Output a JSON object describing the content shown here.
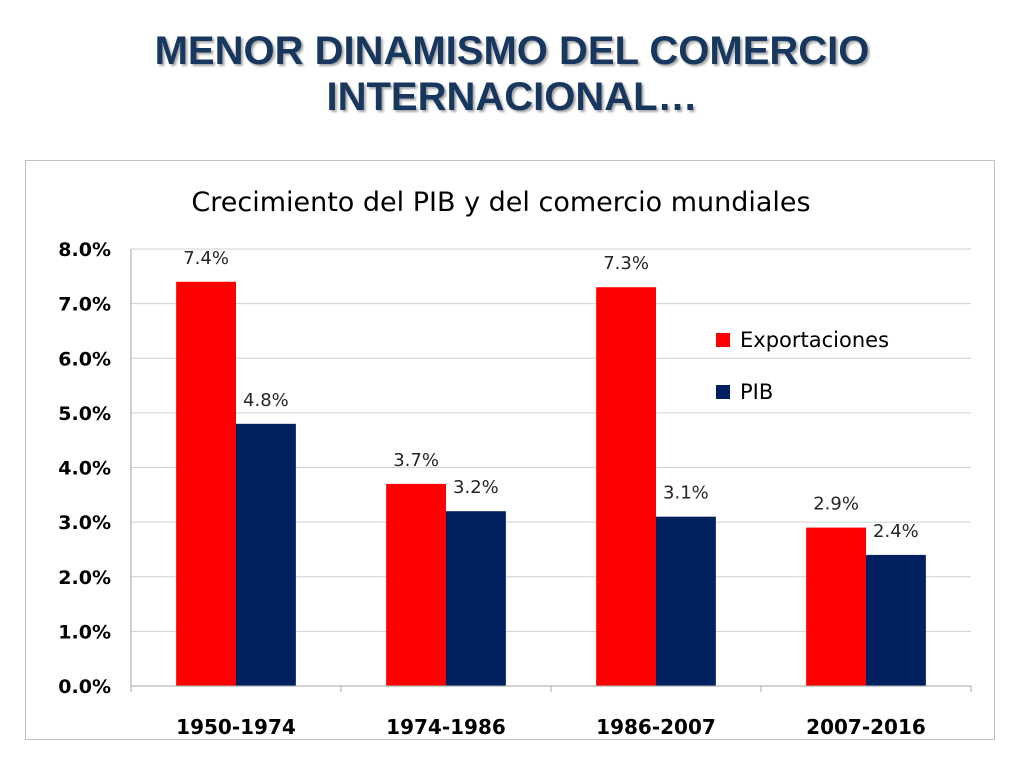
{
  "slide": {
    "title_line1": "MENOR DINAMISMO DEL COMERCIO",
    "title_line2": "INTERNACIONAL…"
  },
  "chart_data": {
    "type": "bar",
    "title": "Crecimiento del PIB y del comercio mundiales",
    "categories": [
      "1950-1974",
      "1974-1986",
      "1986-2007",
      "2007-2016"
    ],
    "series": [
      {
        "name": "Exportaciones",
        "color": "#ff0000",
        "values": [
          7.4,
          3.7,
          7.3,
          2.9
        ],
        "labels": [
          "7.4%",
          "3.7%",
          "7.3%",
          "2.9%"
        ]
      },
      {
        "name": "PIB",
        "color": "#002060",
        "values": [
          4.8,
          3.2,
          3.1,
          2.4
        ],
        "labels": [
          "4.8%",
          "3.2%",
          "3.1%",
          "2.4%"
        ]
      }
    ],
    "ylim": [
      0,
      8
    ],
    "yticks": [
      "0.0%",
      "1.0%",
      "2.0%",
      "3.0%",
      "4.0%",
      "5.0%",
      "6.0%",
      "7.0%",
      "8.0%"
    ],
    "xlabel": "",
    "ylabel": "",
    "grid": true,
    "legend_position": "right"
  }
}
